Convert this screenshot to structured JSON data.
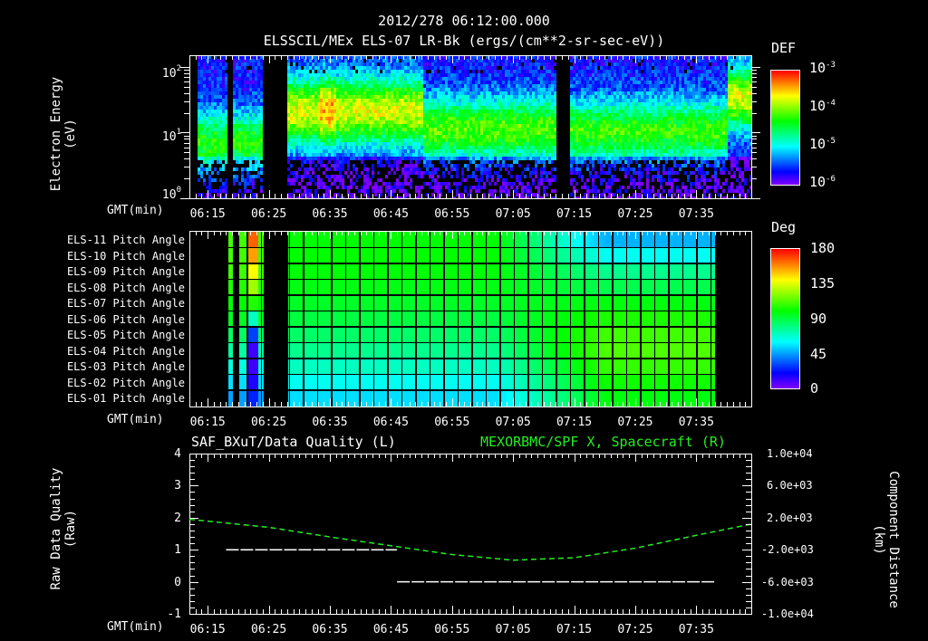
{
  "header": {
    "timestamp": "2012/278 06:12:00.000",
    "subtitle": "ELSSCIL/MEx ELS-07 LR-Bk  (ergs/(cm**2-sr-sec-eV))"
  },
  "x_axis": {
    "label": "GMT(min)",
    "ticks": [
      "06:15",
      "06:25",
      "06:35",
      "06:45",
      "06:55",
      "07:05",
      "07:15",
      "07:25",
      "07:35"
    ],
    "range_start": "06:12",
    "range_end": "07:44"
  },
  "panel_energy": {
    "ylabel_line1": "Electron Energy",
    "ylabel_line2": "(eV)",
    "yticks": [
      {
        "base": "10",
        "exp": "2"
      },
      {
        "base": "10",
        "exp": "1"
      },
      {
        "base": "10",
        "exp": "0"
      }
    ],
    "colorbar": {
      "title": "DEF",
      "ticks": [
        {
          "base": "10",
          "exp": "-3"
        },
        {
          "base": "10",
          "exp": "-4"
        },
        {
          "base": "10",
          "exp": "-5"
        },
        {
          "base": "10",
          "exp": "-6"
        }
      ]
    }
  },
  "panel_pitch": {
    "rows": [
      "ELS-11 Pitch Angle",
      "ELS-10 Pitch Angle",
      "ELS-09 Pitch Angle",
      "ELS-08 Pitch Angle",
      "ELS-07 Pitch Angle",
      "ELS-06 Pitch Angle",
      "ELS-05 Pitch Angle",
      "ELS-04 Pitch Angle",
      "ELS-03 Pitch Angle",
      "ELS-02 Pitch Angle",
      "ELS-01 Pitch Angle"
    ],
    "colorbar": {
      "title": "Deg",
      "ticks": [
        "180",
        "135",
        "90",
        "45",
        "0"
      ]
    }
  },
  "panel_quality": {
    "left_title": "SAF_BXuT/Data Quality (L)",
    "right_title": "MEXORBMC/SPF X, Spacecraft (R)",
    "ylabel_left_line1": "Raw Data Quality",
    "ylabel_left_line2": "(Raw)",
    "ylabel_right_line1": "Component Distance",
    "ylabel_right_line2": "(km)",
    "yticks_left": [
      "4",
      "3",
      "2",
      "1",
      "0",
      "-1"
    ],
    "yticks_right": [
      "1.0e+04",
      "6.0e+03",
      "2.0e+03",
      "-2.0e+03",
      "-6.0e+03",
      "-1.0e+04"
    ]
  },
  "colors": {
    "background": "#000000",
    "axes": "#ffffff",
    "orbit_line": "#22ee22",
    "quality_line": "#ffffff"
  },
  "chart_data": [
    {
      "type": "heatmap",
      "title": "ELSSCIL/MEx ELS-07 LR-Bk (ergs/(cm**2-sr-sec-eV))",
      "xlabel": "GMT(min)",
      "ylabel": "Electron Energy (eV)",
      "yscale": "log",
      "ylim": [
        1,
        150
      ],
      "x_ticks": [
        "06:15",
        "06:25",
        "06:35",
        "06:45",
        "06:55",
        "07:05",
        "07:15",
        "07:25",
        "07:35"
      ],
      "colorbar": {
        "label": "DEF",
        "scale": "log",
        "range": [
          1e-06,
          0.001
        ]
      },
      "data_gaps": [
        [
          "06:12",
          "06:13"
        ],
        [
          "06:18",
          "06:19"
        ],
        [
          "06:24",
          "06:28"
        ],
        [
          "07:12",
          "07:14"
        ]
      ],
      "features": [
        {
          "time": "06:13-06:18",
          "peak_energy_eV": 10,
          "level": "~1e-5"
        },
        {
          "time": "06:19-06:24",
          "peak_energy_eV": 10,
          "level": "~1e-5"
        },
        {
          "time": "06:28-06:50",
          "peak_energy_eV": 25,
          "level": "~5e-5 to 1e-4, peaks ~3e-4 near 06:34"
        },
        {
          "time": "06:50-07:12",
          "peak_energy_eV": 12,
          "level": "~3e-5"
        },
        {
          "time": "07:14-07:40",
          "peak_energy_eV": 12,
          "level": "~2e-5 to 4e-5"
        },
        {
          "time": "07:40-07:44",
          "peak_energy_eV": 40,
          "level": "~1e-4"
        }
      ]
    },
    {
      "type": "heatmap",
      "title": "ELS Pitch Angle",
      "xlabel": "GMT(min)",
      "categories": [
        "ELS-01",
        "ELS-02",
        "ELS-03",
        "ELS-04",
        "ELS-05",
        "ELS-06",
        "ELS-07",
        "ELS-08",
        "ELS-09",
        "ELS-10",
        "ELS-11"
      ],
      "colorbar": {
        "label": "Deg",
        "range": [
          0,
          180
        ],
        "ticks": [
          0,
          45,
          90,
          135,
          180
        ]
      },
      "data_coverage": [
        [
          "06:18",
          "06:19"
        ],
        [
          "06:20",
          "06:24"
        ],
        [
          "06:28",
          "07:38"
        ]
      ],
      "approx_values_deg": {
        "06:30": [
          60,
          65,
          72,
          80,
          85,
          90,
          95,
          98,
          100,
          100,
          100
        ],
        "07:20": [
          100,
          105,
          110,
          112,
          110,
          105,
          100,
          90,
          80,
          60,
          45
        ],
        "06:22": [
          25,
          20,
          20,
          20,
          40,
          80,
          110,
          130,
          140,
          150,
          155
        ]
      }
    },
    {
      "type": "line",
      "title": "SAF_BXuT/Data Quality (L) / MEXORBMC/SPF X, Spacecraft (R)",
      "xlabel": "GMT(min)",
      "ylabel": "Raw Data Quality (Raw)",
      "ylim": [
        -1,
        4
      ],
      "y2label": "Component Distance (km)",
      "y2lim": [
        -10000,
        10000
      ],
      "series": [
        {
          "name": "Data Quality (L)",
          "axis": "left",
          "color": "#ffffff",
          "x": [
            "06:18",
            "06:46",
            "06:46",
            "07:38"
          ],
          "values": [
            1,
            1,
            0,
            0
          ]
        },
        {
          "name": "SPF X Spacecraft (R)",
          "axis": "right",
          "color": "#22ee22",
          "style": "dashed",
          "x": [
            "06:12",
            "06:25",
            "06:35",
            "06:45",
            "06:55",
            "07:05",
            "07:15",
            "07:25",
            "07:35",
            "07:44"
          ],
          "values": [
            1800,
            800,
            -400,
            -1500,
            -2600,
            -3300,
            -3000,
            -1800,
            -200,
            1200
          ]
        }
      ]
    }
  ]
}
